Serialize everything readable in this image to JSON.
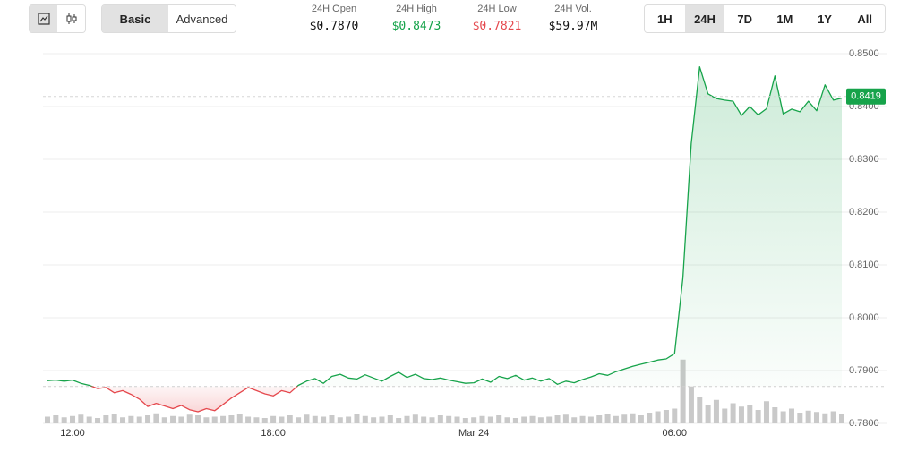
{
  "toolbar": {
    "views": [
      "Basic",
      "Advanced"
    ],
    "active_view": 0,
    "periods": [
      "1H",
      "24H",
      "7D",
      "1M",
      "1Y",
      "All"
    ],
    "active_period": 1
  },
  "stats": [
    {
      "label": "24H Open",
      "value": "$0.7870"
    },
    {
      "label": "24H High",
      "value": "$0.8473"
    },
    {
      "label": "24H Low",
      "value": "$0.7821"
    },
    {
      "label": "24H Vol.",
      "value": "$59.97M"
    }
  ],
  "chart_data": {
    "type": "line",
    "categories": [
      null,
      null,
      null,
      "12:00",
      null,
      null,
      null,
      null,
      null,
      null,
      null,
      null,
      null,
      null,
      null,
      null,
      null,
      null,
      null,
      null,
      null,
      null,
      null,
      null,
      null,
      null,
      null,
      "18:00",
      null,
      null,
      null,
      null,
      null,
      null,
      null,
      null,
      null,
      null,
      null,
      null,
      null,
      null,
      null,
      null,
      null,
      null,
      null,
      null,
      null,
      null,
      null,
      "Mar 24",
      null,
      null,
      null,
      null,
      null,
      null,
      null,
      null,
      null,
      null,
      null,
      null,
      null,
      null,
      null,
      null,
      null,
      null,
      null,
      null,
      null,
      null,
      null,
      "06:00",
      null,
      null,
      null,
      null,
      null,
      null,
      null,
      null,
      null,
      null,
      null,
      null,
      null,
      null,
      null,
      null,
      null,
      null,
      null,
      null
    ],
    "values": [
      0.7881,
      0.7882,
      0.788,
      0.7882,
      0.7876,
      0.7872,
      0.7866,
      0.7868,
      0.7858,
      0.7862,
      0.7855,
      0.7846,
      0.7832,
      0.7838,
      0.7833,
      0.7828,
      0.7834,
      0.7826,
      0.7822,
      0.7828,
      0.7824,
      0.7836,
      0.7848,
      0.7858,
      0.7868,
      0.7862,
      0.7856,
      0.7852,
      0.7862,
      0.7858,
      0.7872,
      0.788,
      0.7885,
      0.7876,
      0.7889,
      0.7893,
      0.7886,
      0.7884,
      0.7892,
      0.7886,
      0.788,
      0.7889,
      0.7897,
      0.7887,
      0.7893,
      0.7885,
      0.7883,
      0.7886,
      0.7882,
      0.7879,
      0.7876,
      0.7877,
      0.7884,
      0.7878,
      0.7889,
      0.7885,
      0.7891,
      0.7882,
      0.7886,
      0.788,
      0.7885,
      0.7874,
      0.788,
      0.7877,
      0.7883,
      0.7888,
      0.7894,
      0.7891,
      0.7898,
      0.7903,
      0.7908,
      0.7912,
      0.7916,
      0.792,
      0.7922,
      0.7932,
      0.8076,
      0.833,
      0.8475,
      0.8424,
      0.8415,
      0.8412,
      0.841,
      0.8383,
      0.84,
      0.8384,
      0.8396,
      0.8458,
      0.8386,
      0.8395,
      0.839,
      0.841,
      0.8392,
      0.8441,
      0.8412,
      0.8416
    ],
    "baseline": 0.787,
    "up_color": "#16a34a",
    "down_color": "#e5484d",
    "last_price": 0.8419,
    "volume": {
      "values": [
        10,
        12,
        9,
        11,
        13,
        10,
        8,
        12,
        14,
        9,
        11,
        10,
        12,
        15,
        9,
        11,
        10,
        13,
        12,
        9,
        10,
        11,
        12,
        14,
        10,
        9,
        8,
        11,
        10,
        12,
        9,
        13,
        11,
        10,
        12,
        9,
        10,
        14,
        11,
        9,
        10,
        12,
        8,
        11,
        13,
        10,
        9,
        12,
        11,
        10,
        8,
        9,
        11,
        10,
        12,
        9,
        8,
        10,
        11,
        9,
        10,
        12,
        13,
        9,
        11,
        10,
        12,
        14,
        11,
        13,
        15,
        12,
        16,
        18,
        20,
        22,
        95,
        55,
        40,
        28,
        35,
        22,
        30,
        25,
        27,
        20,
        33,
        24,
        18,
        22,
        16,
        19,
        17,
        15,
        18,
        14
      ],
      "ylim": [
        0,
        100
      ],
      "color": "#c9c9c9"
    },
    "ylim": [
      0.78,
      0.85
    ],
    "yticks": [
      {
        "value": 0.78,
        "label": "0.7800"
      },
      {
        "value": 0.79,
        "label": "0.7900"
      },
      {
        "value": 0.8,
        "label": "0.8000"
      },
      {
        "value": 0.81,
        "label": "0.8100"
      },
      {
        "value": 0.82,
        "label": "0.8200"
      },
      {
        "value": 0.83,
        "label": "0.8300"
      },
      {
        "value": 0.84,
        "label": "0.8400"
      },
      {
        "value": 0.85,
        "label": "0.8500"
      }
    ],
    "grid": true
  }
}
